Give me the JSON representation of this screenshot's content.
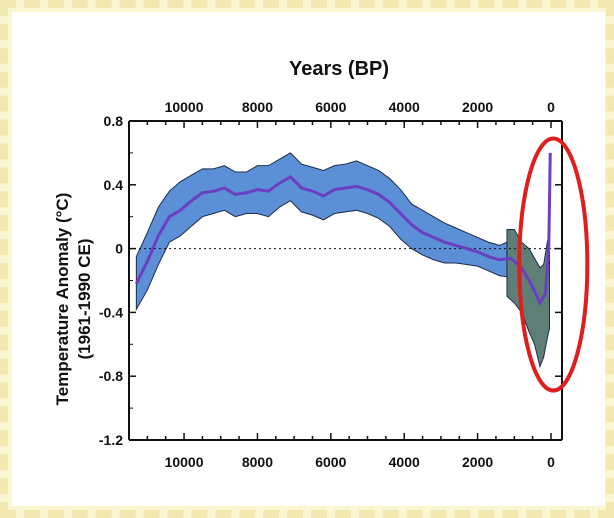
{
  "chart_data": {
    "type": "line",
    "title": "Years (BP)",
    "ylabel": "Temperature Anomaly (°C)",
    "ylabel_sub": "(1961-1990 CE)",
    "xlim": [
      11500,
      -300
    ],
    "ylim": [
      -1.2,
      0.8
    ],
    "xticks": [
      10000,
      8000,
      6000,
      4000,
      2000,
      0
    ],
    "yticks": [
      0.8,
      0.4,
      0,
      -0.4,
      -0.8,
      -1.2
    ],
    "ytick_labels": [
      "0.8",
      "0.4",
      "0",
      "-0.4",
      "-0.8",
      "-1.2"
    ],
    "zero_reference_line": "dotted",
    "series": [
      {
        "role": "mean",
        "color": "#6a3fc1",
        "x": [
          11300,
          11000,
          10700,
          10400,
          10100,
          9800,
          9500,
          9200,
          8900,
          8600,
          8300,
          8000,
          7700,
          7400,
          7100,
          6800,
          6500,
          6200,
          5900,
          5600,
          5300,
          5000,
          4700,
          4400,
          4100,
          3800,
          3500,
          3200,
          2900,
          2600,
          2300,
          2000,
          1700,
          1400,
          1100,
          800,
          500,
          300,
          150,
          60,
          20
        ],
        "y": [
          -0.22,
          -0.08,
          0.08,
          0.2,
          0.24,
          0.3,
          0.35,
          0.36,
          0.38,
          0.34,
          0.35,
          0.37,
          0.36,
          0.41,
          0.45,
          0.38,
          0.36,
          0.33,
          0.37,
          0.38,
          0.39,
          0.37,
          0.34,
          0.29,
          0.22,
          0.15,
          0.1,
          0.07,
          0.04,
          0.02,
          0.0,
          -0.02,
          -0.05,
          -0.07,
          -0.06,
          -0.12,
          -0.24,
          -0.34,
          -0.28,
          0.02,
          0.6
        ]
      },
      {
        "role": "uncertainty_band",
        "color": "#5b8fd6",
        "x": [
          11300,
          11000,
          10700,
          10400,
          10100,
          9800,
          9500,
          9200,
          8900,
          8600,
          8300,
          8000,
          7700,
          7400,
          7100,
          6800,
          6500,
          6200,
          5900,
          5600,
          5300,
          5000,
          4700,
          4400,
          4100,
          3800,
          3500,
          3200,
          2900,
          2600,
          2300,
          2000,
          1700,
          1400,
          1100
        ],
        "upper": [
          -0.05,
          0.1,
          0.26,
          0.36,
          0.42,
          0.46,
          0.5,
          0.5,
          0.52,
          0.48,
          0.48,
          0.52,
          0.52,
          0.56,
          0.6,
          0.53,
          0.51,
          0.49,
          0.52,
          0.53,
          0.55,
          0.52,
          0.49,
          0.44,
          0.37,
          0.28,
          0.24,
          0.2,
          0.16,
          0.13,
          0.1,
          0.07,
          0.04,
          0.02,
          0.05
        ],
        "lower": [
          -0.38,
          -0.26,
          -0.1,
          0.04,
          0.08,
          0.14,
          0.2,
          0.22,
          0.24,
          0.2,
          0.22,
          0.22,
          0.2,
          0.26,
          0.3,
          0.23,
          0.21,
          0.18,
          0.22,
          0.23,
          0.24,
          0.22,
          0.19,
          0.14,
          0.06,
          0.0,
          -0.04,
          -0.07,
          -0.09,
          -0.09,
          -0.1,
          -0.11,
          -0.14,
          -0.17,
          -0.18
        ]
      },
      {
        "role": "recent_band",
        "color": "#5e7f76",
        "x": [
          1200,
          1000,
          800,
          600,
          450,
          300,
          200,
          100,
          40
        ],
        "upper": [
          0.12,
          0.12,
          0.04,
          0.0,
          -0.06,
          -0.12,
          -0.1,
          0.04,
          0.1
        ],
        "lower": [
          -0.3,
          -0.34,
          -0.4,
          -0.52,
          -0.6,
          -0.74,
          -0.68,
          -0.56,
          -0.5
        ]
      }
    ],
    "annotation": {
      "shape": "ellipse",
      "color": "#e01e1e",
      "x_center": 100,
      "y_center": -0.1
    }
  }
}
